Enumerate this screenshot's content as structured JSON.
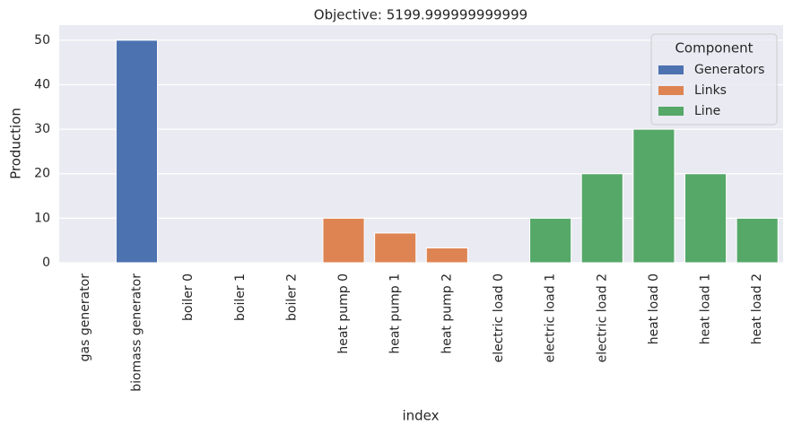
{
  "chart_data": {
    "type": "bar",
    "title": "Objective: 5199.999999999999",
    "x_label": "index",
    "y_label": "Production",
    "categories": [
      "gas generator",
      "biomass generator",
      "boiler 0",
      "boiler 1",
      "boiler 2",
      "heat pump 0",
      "heat pump 1",
      "heat pump 2",
      "electric load 0",
      "electric load 1",
      "electric load 2",
      "heat load 0",
      "heat load 1",
      "heat load 2"
    ],
    "series": [
      {
        "name": "Generators",
        "color": "#4c72b0",
        "values": [
          0,
          50,
          null,
          null,
          null,
          null,
          null,
          null,
          null,
          null,
          null,
          null,
          null,
          null
        ]
      },
      {
        "name": "Links",
        "color": "#dd8452",
        "values": [
          null,
          null,
          0,
          0,
          0,
          10,
          6.67,
          3.33,
          null,
          null,
          null,
          null,
          null,
          null
        ]
      },
      {
        "name": "Line",
        "color": "#55a868",
        "values": [
          null,
          null,
          null,
          null,
          null,
          null,
          null,
          null,
          0,
          10,
          20,
          30,
          20,
          10
        ]
      }
    ],
    "legend_title": "Component",
    "legend": "upper right",
    "ylim": [
      0,
      53.4
    ],
    "yticks": [
      0,
      10,
      20,
      30,
      40,
      50
    ],
    "grid": true
  }
}
